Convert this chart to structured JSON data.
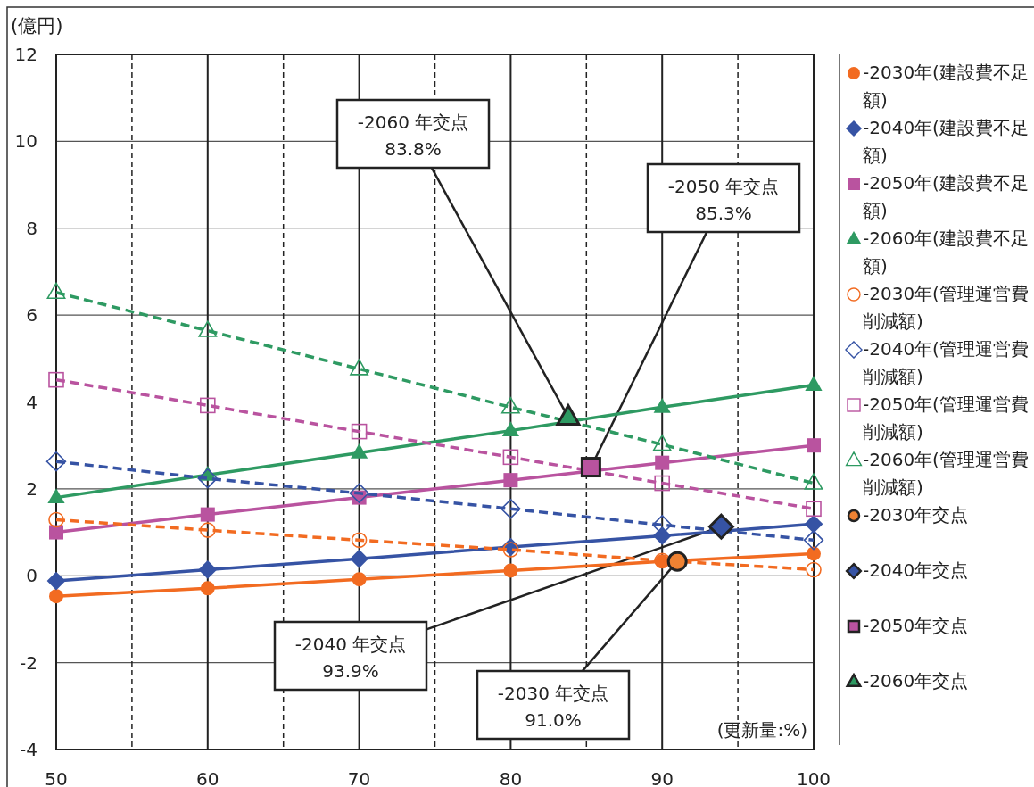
{
  "chart_data": {
    "type": "line",
    "ylabel": "(億円)",
    "xlabel": "(更新量:%)",
    "x": [
      50,
      60,
      70,
      80,
      90,
      100
    ],
    "xlim": [
      50,
      100
    ],
    "ylim": [
      -4,
      12
    ],
    "xticks": [
      50,
      {
        "value": 55,
        "label": null
      },
      60,
      {
        "value": 65,
        "label": null
      },
      70,
      {
        "value": 75,
        "label": null
      },
      80,
      {
        "value": 85,
        "label": null
      },
      90,
      {
        "value": 95,
        "label": null
      },
      100
    ],
    "yticks": [
      -4,
      -2,
      0,
      2,
      4,
      6,
      8,
      10,
      12
    ],
    "grid": true,
    "legend": "right",
    "series": [
      {
        "name": "-2030年(建設費不足額)",
        "color": "#f26b21",
        "marker": "circle",
        "line_style": "solid",
        "values": [
          -0.47,
          -0.29,
          -0.08,
          0.12,
          0.33,
          0.51
        ]
      },
      {
        "name": "-2040年(建設費不足額)",
        "color": "#3653a4",
        "marker": "diamond",
        "line_style": "solid",
        "values": [
          -0.12,
          0.14,
          0.39,
          0.66,
          0.92,
          1.19
        ]
      },
      {
        "name": "-2050年(建設費不足額)",
        "color": "#b9539f",
        "marker": "square",
        "line_style": "solid",
        "values": [
          1.0,
          1.41,
          1.8,
          2.2,
          2.6,
          3.0
        ]
      },
      {
        "name": "-2060年(建設費不足額)",
        "color": "#2e9a62",
        "marker": "triangle",
        "line_style": "solid",
        "values": [
          1.8,
          2.32,
          2.83,
          3.34,
          3.88,
          4.39
        ]
      },
      {
        "name": "-2030年(管理運営費削減額)",
        "color": "#f26b21",
        "marker": "circle",
        "line_style": "dashed",
        "values": [
          1.29,
          1.05,
          0.82,
          0.6,
          0.35,
          0.14
        ]
      },
      {
        "name": "-2040年(管理運営費削減額)",
        "color": "#3653a4",
        "marker": "diamond",
        "line_style": "dashed",
        "values": [
          2.63,
          2.24,
          1.9,
          1.54,
          1.17,
          0.82
        ]
      },
      {
        "name": "-2050年(管理運営費削減額)",
        "color": "#b9539f",
        "marker": "square",
        "line_style": "dashed",
        "values": [
          4.51,
          3.92,
          3.32,
          2.73,
          2.13,
          1.54
        ]
      },
      {
        "name": "-2060年(管理運営費削減額)",
        "color": "#2e9a62",
        "marker": "triangle",
        "line_style": "dashed",
        "values": [
          6.52,
          5.64,
          4.76,
          3.88,
          3.02,
          2.13
        ]
      },
      {
        "name": "-2030年交点",
        "type": "scatter",
        "color": "#ee8233",
        "marker": "circle",
        "x": [
          91.0
        ],
        "values": [
          0.33
        ]
      },
      {
        "name": "-2040年交点",
        "type": "scatter",
        "color": "#3653a4",
        "marker": "diamond",
        "x": [
          93.9
        ],
        "values": [
          1.13
        ]
      },
      {
        "name": "-2050年交点",
        "type": "scatter",
        "color": "#b9539f",
        "marker": "square",
        "x": [
          85.3
        ],
        "values": [
          2.5
        ]
      },
      {
        "name": "-2060年交点",
        "type": "scatter",
        "color": "#2e9a62",
        "marker": "triangle",
        "x": [
          83.8
        ],
        "values": [
          3.65
        ]
      }
    ],
    "annotations": [
      {
        "text": "-2060 年交点\n83.8%",
        "x": 83.8,
        "y": 3.65
      },
      {
        "text": "-2050 年交点\n85.3%",
        "x": 85.3,
        "y": 2.5
      },
      {
        "text": "-2040 年交点\n93.9%",
        "x": 93.9,
        "y": 1.13
      },
      {
        "text": "-2030 年交点\n91.0%",
        "x": 91.0,
        "y": 0.33
      }
    ]
  }
}
